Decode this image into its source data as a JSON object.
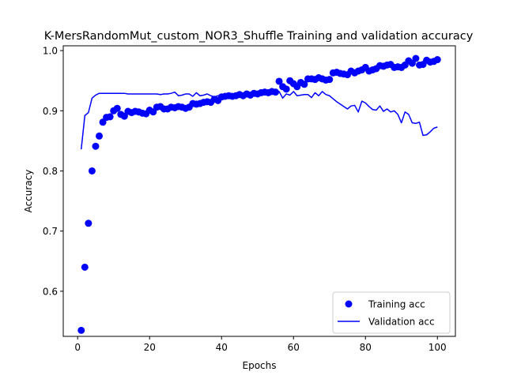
{
  "chart_data": {
    "type": "line",
    "title": "K-MersRandomMut_custom_NOR3_Shuffle Training and validation accuracy",
    "xlabel": "Epochs",
    "ylabel": "Accuracy",
    "xlim": [
      -4,
      105
    ],
    "ylim": [
      0.525,
      1.008
    ],
    "xticks": [
      0,
      20,
      40,
      60,
      80,
      100
    ],
    "yticks": [
      0.6,
      0.7,
      0.8,
      0.9,
      1.0
    ],
    "xtick_labels": [
      "0",
      "20",
      "40",
      "60",
      "80",
      "100"
    ],
    "ytick_labels": [
      "0.6",
      "0.7",
      "0.8",
      "0.9",
      "1.0"
    ],
    "legend_position": "lower-right",
    "series": [
      {
        "name": "Training acc",
        "style": "markers",
        "color": "#0000ff",
        "x": [
          1,
          2,
          3,
          4,
          5,
          6,
          7,
          8,
          9,
          10,
          11,
          12,
          13,
          14,
          15,
          16,
          17,
          18,
          19,
          20,
          21,
          22,
          23,
          24,
          25,
          26,
          27,
          28,
          29,
          30,
          31,
          32,
          33,
          34,
          35,
          36,
          37,
          38,
          39,
          40,
          41,
          42,
          43,
          44,
          45,
          46,
          47,
          48,
          49,
          50,
          51,
          52,
          53,
          54,
          55,
          56,
          57,
          58,
          59,
          60,
          61,
          62,
          63,
          64,
          65,
          66,
          67,
          68,
          69,
          70,
          71,
          72,
          73,
          74,
          75,
          76,
          77,
          78,
          79,
          80,
          81,
          82,
          83,
          84,
          85,
          86,
          87,
          88,
          89,
          90,
          91,
          92,
          93,
          94,
          95,
          96,
          97,
          98,
          99,
          100
        ],
        "values": [
          0.535,
          0.64,
          0.713,
          0.8,
          0.841,
          0.858,
          0.881,
          0.889,
          0.89,
          0.9,
          0.904,
          0.894,
          0.891,
          0.899,
          0.897,
          0.899,
          0.898,
          0.896,
          0.895,
          0.901,
          0.898,
          0.906,
          0.907,
          0.903,
          0.903,
          0.906,
          0.905,
          0.907,
          0.906,
          0.904,
          0.906,
          0.912,
          0.911,
          0.912,
          0.914,
          0.915,
          0.914,
          0.919,
          0.917,
          0.923,
          0.924,
          0.925,
          0.924,
          0.925,
          0.927,
          0.925,
          0.928,
          0.926,
          0.929,
          0.928,
          0.93,
          0.931,
          0.93,
          0.932,
          0.931,
          0.949,
          0.94,
          0.936,
          0.95,
          0.945,
          0.94,
          0.947,
          0.944,
          0.953,
          0.953,
          0.952,
          0.955,
          0.953,
          0.951,
          0.952,
          0.963,
          0.964,
          0.962,
          0.961,
          0.96,
          0.966,
          0.963,
          0.966,
          0.968,
          0.972,
          0.966,
          0.968,
          0.97,
          0.975,
          0.974,
          0.976,
          0.977,
          0.972,
          0.973,
          0.972,
          0.976,
          0.983,
          0.979,
          0.987,
          0.976,
          0.977,
          0.984,
          0.981,
          0.982,
          0.985
        ]
      },
      {
        "name": "Validation acc",
        "style": "line",
        "color": "#0000ff",
        "x": [
          1,
          2,
          3,
          4,
          5,
          6,
          7,
          8,
          9,
          10,
          11,
          12,
          13,
          14,
          15,
          16,
          17,
          18,
          19,
          20,
          21,
          22,
          23,
          24,
          25,
          26,
          27,
          28,
          29,
          30,
          31,
          32,
          33,
          34,
          35,
          36,
          37,
          38,
          39,
          40,
          41,
          42,
          43,
          44,
          45,
          46,
          47,
          48,
          49,
          50,
          51,
          52,
          53,
          54,
          55,
          56,
          57,
          58,
          59,
          60,
          61,
          62,
          63,
          64,
          65,
          66,
          67,
          68,
          69,
          70,
          71,
          72,
          73,
          74,
          75,
          76,
          77,
          78,
          79,
          80,
          81,
          82,
          83,
          84,
          85,
          86,
          87,
          88,
          89,
          90,
          91,
          92,
          93,
          94,
          95,
          96,
          97,
          98,
          99,
          100
        ],
        "values": [
          0.836,
          0.892,
          0.897,
          0.921,
          0.926,
          0.929,
          0.929,
          0.929,
          0.929,
          0.929,
          0.929,
          0.929,
          0.929,
          0.928,
          0.928,
          0.928,
          0.928,
          0.928,
          0.928,
          0.928,
          0.928,
          0.928,
          0.927,
          0.928,
          0.928,
          0.929,
          0.931,
          0.925,
          0.926,
          0.928,
          0.928,
          0.924,
          0.93,
          0.925,
          0.926,
          0.928,
          0.925,
          0.923,
          0.925,
          0.922,
          0.923,
          0.924,
          0.925,
          0.926,
          0.925,
          0.925,
          0.926,
          0.926,
          0.926,
          0.927,
          0.926,
          0.928,
          0.926,
          0.928,
          0.93,
          0.932,
          0.921,
          0.928,
          0.926,
          0.932,
          0.925,
          0.926,
          0.927,
          0.927,
          0.922,
          0.93,
          0.925,
          0.932,
          0.927,
          0.925,
          0.92,
          0.915,
          0.911,
          0.907,
          0.903,
          0.908,
          0.909,
          0.898,
          0.916,
          0.913,
          0.907,
          0.902,
          0.901,
          0.908,
          0.899,
          0.903,
          0.898,
          0.9,
          0.894,
          0.88,
          0.898,
          0.894,
          0.88,
          0.879,
          0.881,
          0.859,
          0.86,
          0.865,
          0.871,
          0.873
        ]
      }
    ]
  }
}
